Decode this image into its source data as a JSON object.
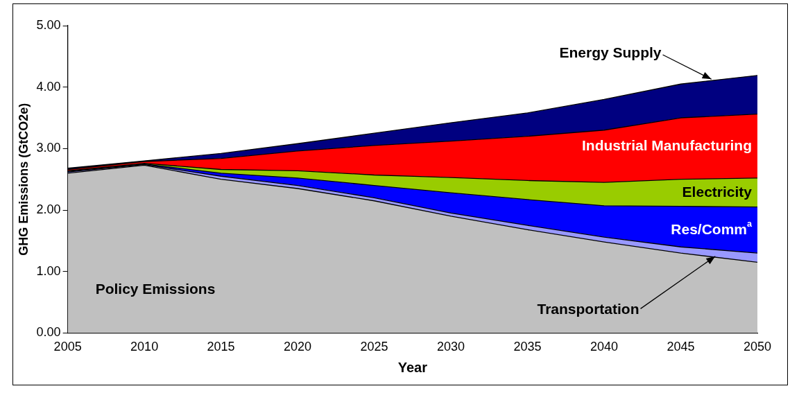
{
  "chart_data": {
    "type": "area",
    "stacked": true,
    "xlabel": "Year",
    "ylabel": "GHG Emissions (GtCO2e)",
    "x": [
      2005,
      2010,
      2015,
      2020,
      2025,
      2030,
      2035,
      2040,
      2045,
      2050
    ],
    "xlim": [
      2005,
      2050
    ],
    "xticks": [
      2005,
      2010,
      2015,
      2020,
      2025,
      2030,
      2035,
      2040,
      2045,
      2050
    ],
    "ylim": [
      0,
      5
    ],
    "yticks": [
      {
        "value": 0,
        "label": "0.00"
      },
      {
        "value": 1,
        "label": "1.00"
      },
      {
        "value": 2,
        "label": "2.00"
      },
      {
        "value": 3,
        "label": "3.00"
      },
      {
        "value": 4,
        "label": "4.00"
      },
      {
        "value": 5,
        "label": "5.00"
      }
    ],
    "grid": false,
    "legend": false,
    "series": [
      {
        "name": "Policy Emissions",
        "color": "#c0c0c0",
        "values": [
          2.6,
          2.73,
          2.5,
          2.35,
          2.15,
          1.9,
          1.68,
          1.48,
          1.3,
          1.15
        ]
      },
      {
        "name": "Transportation",
        "color": "#9999ff",
        "values": [
          0.02,
          0.01,
          0.05,
          0.05,
          0.05,
          0.05,
          0.07,
          0.08,
          0.1,
          0.15
        ]
      },
      {
        "name": "Res/Comm$^{a}$",
        "color": "#0000ff",
        "values": [
          0.01,
          0.01,
          0.05,
          0.12,
          0.2,
          0.33,
          0.42,
          0.51,
          0.66,
          0.75
        ]
      },
      {
        "name": "Electricity",
        "color": "#99cc00",
        "values": [
          0.01,
          0.01,
          0.06,
          0.12,
          0.17,
          0.25,
          0.31,
          0.38,
          0.44,
          0.47
        ]
      },
      {
        "name": "Industrial Manufacturing",
        "color": "#ff0000",
        "values": [
          0.02,
          0.03,
          0.18,
          0.32,
          0.48,
          0.59,
          0.72,
          0.85,
          1.0,
          1.04
        ]
      },
      {
        "name": "Energy Supply",
        "color": "#000080",
        "values": [
          0.02,
          0.01,
          0.08,
          0.12,
          0.2,
          0.3,
          0.38,
          0.5,
          0.55,
          0.63
        ]
      }
    ]
  }
}
